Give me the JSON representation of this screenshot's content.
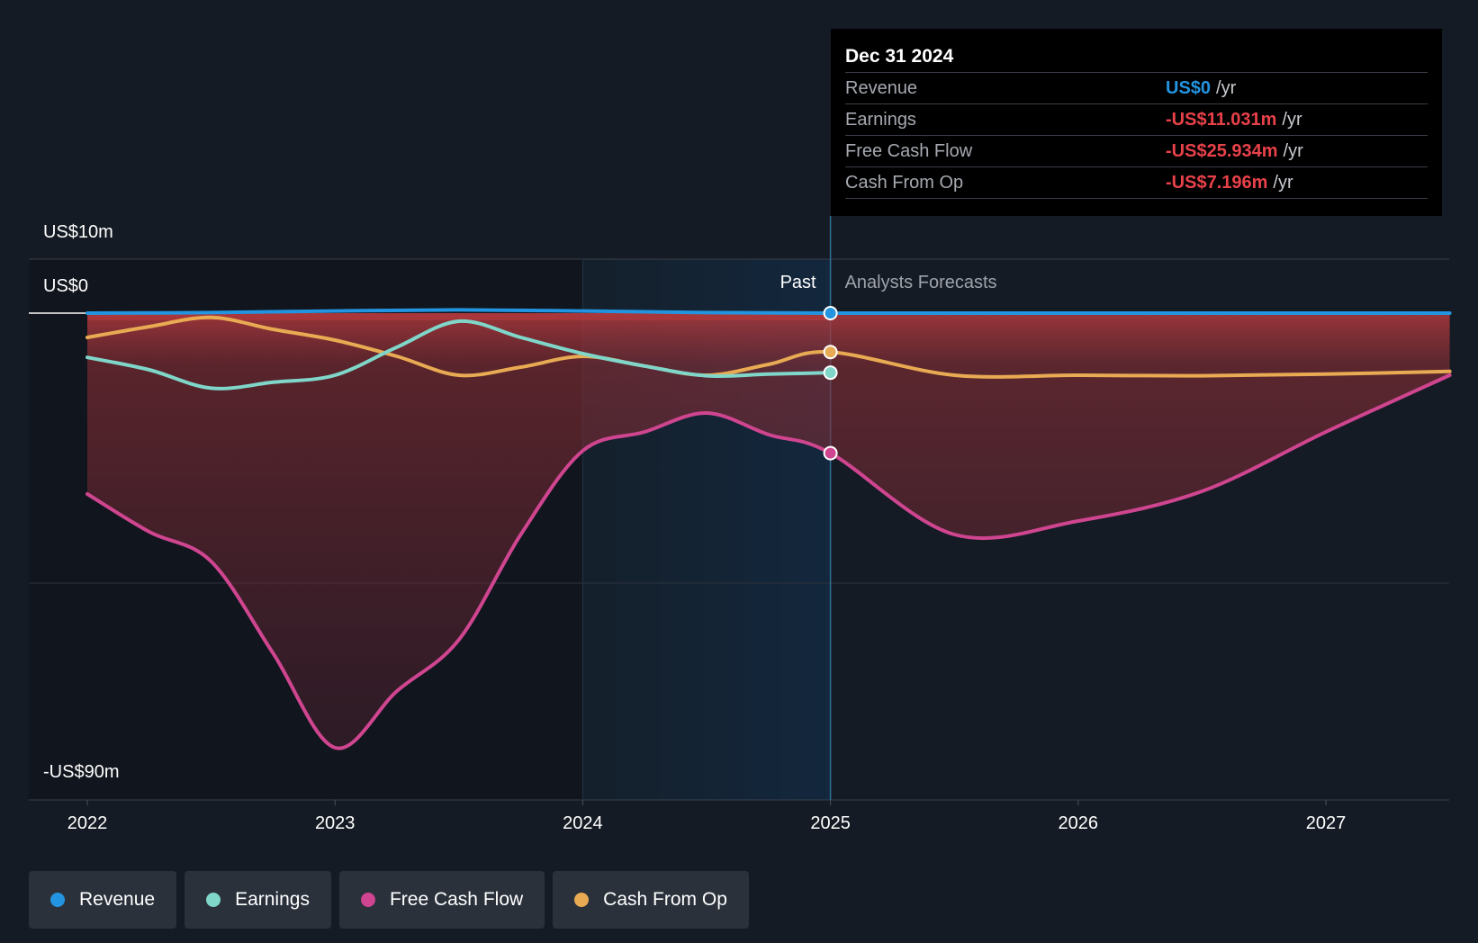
{
  "chart_data": {
    "type": "line",
    "x_range": [
      2021.98,
      2027.5
    ],
    "y_range": [
      -90,
      10
    ],
    "y_axis_labels": [
      "US$10m",
      "US$0",
      "-US$90m"
    ],
    "x_tick_labels": [
      "2022",
      "2023",
      "2024",
      "2025",
      "2026",
      "2027"
    ],
    "x_tick_values": [
      2022,
      2023,
      2024,
      2025,
      2026,
      2027
    ],
    "divider_labels": {
      "past": "Past",
      "forecast": "Analysts Forecasts"
    },
    "divider_x": 2025.0,
    "highlight_start_x": 2024.0,
    "series": [
      {
        "name": "Revenue",
        "color": "#2394df",
        "fill": false,
        "points": [
          [
            2022.0,
            0
          ],
          [
            2022.5,
            0.1
          ],
          [
            2023.0,
            0.4
          ],
          [
            2023.5,
            0.6
          ],
          [
            2024.0,
            0.4
          ],
          [
            2024.5,
            0.1
          ],
          [
            2025.0,
            0
          ],
          [
            2025.5,
            0
          ],
          [
            2026.0,
            0
          ],
          [
            2027.0,
            0
          ],
          [
            2027.5,
            0
          ]
        ]
      },
      {
        "name": "Earnings",
        "color": "#7fd6c9",
        "fill": false,
        "points": [
          [
            2022.0,
            -8.2
          ],
          [
            2022.25,
            -10.5
          ],
          [
            2022.5,
            -13.9
          ],
          [
            2022.75,
            -12.8
          ],
          [
            2023.0,
            -11.5
          ],
          [
            2023.25,
            -6.3
          ],
          [
            2023.5,
            -1.5
          ],
          [
            2023.75,
            -4.5
          ],
          [
            2024.0,
            -7.5
          ],
          [
            2024.25,
            -9.8
          ],
          [
            2024.5,
            -11.6
          ],
          [
            2024.75,
            -11.3
          ],
          [
            2025.0,
            -11.03
          ]
        ]
      },
      {
        "name": "Free Cash Flow",
        "color": "#cf4590",
        "fill": true,
        "points": [
          [
            2022.0,
            -33.5
          ],
          [
            2022.25,
            -40.5
          ],
          [
            2022.5,
            -46
          ],
          [
            2022.75,
            -63
          ],
          [
            2023.0,
            -80.5
          ],
          [
            2023.25,
            -70
          ],
          [
            2023.5,
            -60.5
          ],
          [
            2023.75,
            -41
          ],
          [
            2024.0,
            -25.5
          ],
          [
            2024.25,
            -22
          ],
          [
            2024.5,
            -18.5
          ],
          [
            2024.75,
            -22.5
          ],
          [
            2025.0,
            -25.93
          ],
          [
            2025.5,
            -41
          ],
          [
            2026.0,
            -38.5
          ],
          [
            2026.5,
            -33
          ],
          [
            2027.0,
            -22
          ],
          [
            2027.5,
            -11.5
          ]
        ]
      },
      {
        "name": "Cash From Op",
        "color": "#e8aa52",
        "fill": false,
        "points": [
          [
            2022.0,
            -4.5
          ],
          [
            2022.25,
            -2.5
          ],
          [
            2022.5,
            -0.8
          ],
          [
            2022.75,
            -3
          ],
          [
            2023.0,
            -5
          ],
          [
            2023.25,
            -8
          ],
          [
            2023.5,
            -11.5
          ],
          [
            2023.75,
            -10
          ],
          [
            2024.0,
            -8
          ],
          [
            2024.25,
            -9.8
          ],
          [
            2024.5,
            -11.5
          ],
          [
            2024.75,
            -9.5
          ],
          [
            2025.0,
            -7.2
          ],
          [
            2025.5,
            -11.5
          ],
          [
            2026.0,
            -11.5
          ],
          [
            2026.5,
            -11.6
          ],
          [
            2027.0,
            -11.3
          ],
          [
            2027.5,
            -10.8
          ]
        ]
      }
    ]
  },
  "tooltip": {
    "date": "Dec 31 2024",
    "rows": [
      {
        "label": "Revenue",
        "value": "US$0",
        "unit": "/yr",
        "color": "#2394df"
      },
      {
        "label": "Earnings",
        "value": "-US$11.031m",
        "unit": "/yr",
        "color": "#e8414a"
      },
      {
        "label": "Free Cash Flow",
        "value": "-US$25.934m",
        "unit": "/yr",
        "color": "#e8414a"
      },
      {
        "label": "Cash From Op",
        "value": "-US$7.196m",
        "unit": "/yr",
        "color": "#e8414a"
      }
    ]
  },
  "legend": [
    {
      "label": "Revenue",
      "color": "#2394df"
    },
    {
      "label": "Earnings",
      "color": "#7fd6c9"
    },
    {
      "label": "Free Cash Flow",
      "color": "#cf4590"
    },
    {
      "label": "Cash From Op",
      "color": "#e8aa52"
    }
  ]
}
